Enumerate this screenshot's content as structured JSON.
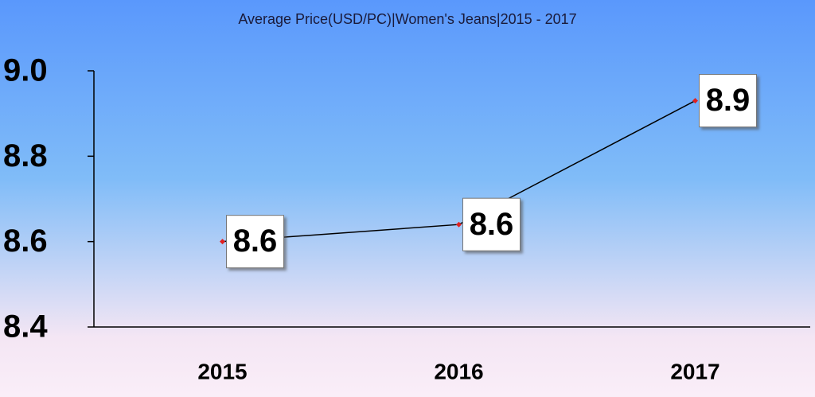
{
  "chart_data": {
    "type": "line",
    "title": "Average Price(USD/PC)|Women's Jeans|2015 - 2017",
    "categories": [
      "2015",
      "2016",
      "2017"
    ],
    "values": [
      8.6,
      8.64,
      8.93
    ],
    "value_labels": [
      "8.6",
      "8.6",
      "8.9"
    ],
    "color": "#000000",
    "marker_color": "#e02020",
    "ylim": [
      8.4,
      9.0
    ],
    "yticks": [
      {
        "value": 9.0,
        "label": "9.0"
      },
      8.8,
      8.6,
      8.4
    ]
  }
}
